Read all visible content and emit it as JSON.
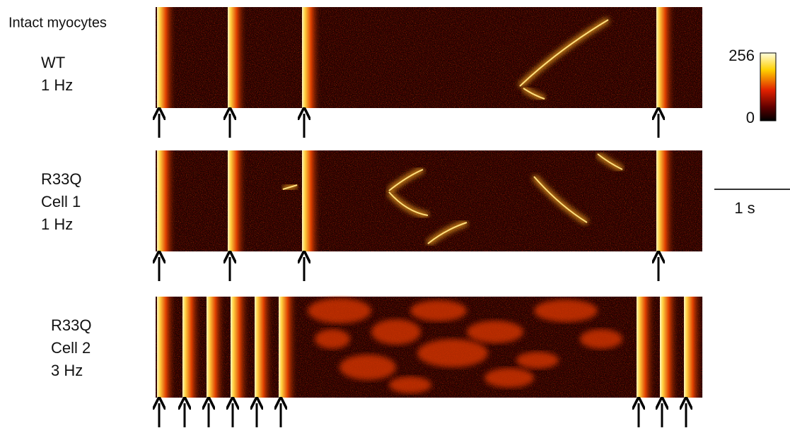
{
  "title": "Intact myocytes",
  "panels": [
    {
      "label": [
        "WT",
        "1 Hz"
      ]
    },
    {
      "label": [
        "R33Q",
        "Cell 1",
        "1 Hz"
      ]
    },
    {
      "label": [
        "R33Q",
        "Cell 2",
        "3 Hz"
      ]
    }
  ],
  "colorbar": {
    "max": 256,
    "min": 0
  },
  "scale_bar": "1 s"
}
